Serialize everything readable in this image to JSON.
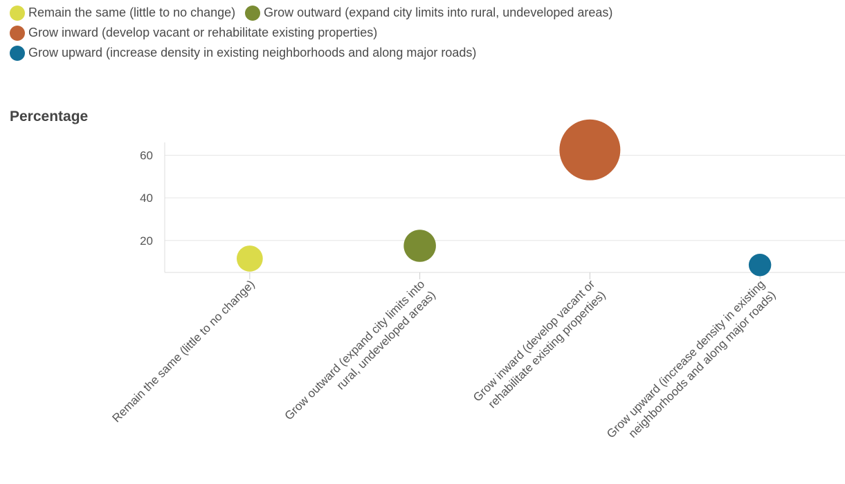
{
  "legend": [
    {
      "label": "Remain the same (little to no change)",
      "color": "#dbdb4a"
    },
    {
      "label": "Grow outward (expand city limits into rural, undeveloped areas)",
      "color": "#7a8c33"
    },
    {
      "label": "Grow inward (develop vacant or rehabilitate existing properties)",
      "color": "#c06336"
    },
    {
      "label": "Grow upward (increase density in existing neighborhoods and along major roads)",
      "color": "#136f97"
    }
  ],
  "chart_data": {
    "type": "scatter",
    "ylabel": "Percentage",
    "yticks": [
      20,
      40,
      60
    ],
    "ylim": [
      5,
      66
    ],
    "grid": true,
    "legend_position": "top-left",
    "categories": [
      [
        "Remain the same (little to no change)"
      ],
      [
        "Grow outward (expand city limits into",
        "rural, undeveloped areas)"
      ],
      [
        "Grow inward (develop vacant or",
        "rehabilitate existing properties)"
      ],
      [
        "Grow upward (increase density in existing",
        "neighborhoods and along major roads)"
      ]
    ],
    "values": [
      11.5,
      17.5,
      62.5,
      8.5
    ],
    "colors": [
      "#dbdb4a",
      "#7a8c33",
      "#c06336",
      "#136f97"
    ]
  }
}
